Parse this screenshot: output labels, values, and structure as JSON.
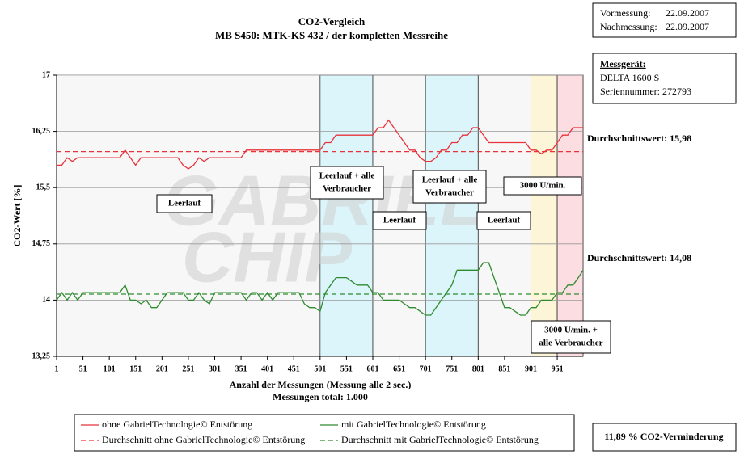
{
  "chart_data": {
    "type": "line",
    "title": [
      "CO2-Vergleich",
      "MB S450: MTK-KS 432 / der kompletten Messreihe"
    ],
    "xlabel": "Anzahl der Messungen (Messung alle 2 sec.)",
    "xsublabel": "Messungen total: 1.000",
    "ylabel": "CO2-Wert [%]",
    "watermark": [
      "GABRIEL",
      "CHIP"
    ],
    "xlim": [
      1,
      1000
    ],
    "xticks": [
      1,
      51,
      101,
      151,
      201,
      251,
      301,
      351,
      401,
      451,
      501,
      551,
      601,
      651,
      701,
      751,
      801,
      851,
      901,
      951
    ],
    "ylim": [
      13.25,
      17
    ],
    "yticks": [
      {
        "value": 13.25,
        "label": "13,25"
      },
      14,
      {
        "value": 14.75,
        "label": "14,75"
      },
      {
        "value": 15.5,
        "label": "15,5"
      },
      {
        "value": 16.25,
        "label": "16,25"
      },
      17
    ],
    "grid": true,
    "x": [
      1,
      11,
      21,
      31,
      41,
      51,
      61,
      71,
      81,
      91,
      101,
      111,
      121,
      131,
      141,
      151,
      161,
      171,
      181,
      191,
      201,
      211,
      221,
      231,
      241,
      251,
      261,
      271,
      281,
      291,
      301,
      311,
      321,
      331,
      341,
      351,
      361,
      371,
      381,
      391,
      401,
      411,
      421,
      431,
      441,
      451,
      461,
      471,
      481,
      491,
      501,
      511,
      521,
      531,
      541,
      551,
      561,
      571,
      581,
      591,
      601,
      611,
      621,
      631,
      641,
      651,
      661,
      671,
      681,
      691,
      701,
      711,
      721,
      731,
      741,
      751,
      761,
      771,
      781,
      791,
      801,
      811,
      821,
      831,
      841,
      851,
      861,
      871,
      881,
      891,
      901,
      911,
      921,
      931,
      941,
      951,
      961,
      971,
      981,
      991,
      1000
    ],
    "series": [
      {
        "name": "ohne GabrielTechnologie© Entstörung",
        "color": "#e8333a",
        "values": [
          15.8,
          15.8,
          15.9,
          15.85,
          15.9,
          15.9,
          15.9,
          15.9,
          15.9,
          15.9,
          15.9,
          15.9,
          15.9,
          16.0,
          15.9,
          15.8,
          15.9,
          15.9,
          15.9,
          15.9,
          15.9,
          15.9,
          15.9,
          15.9,
          15.8,
          15.75,
          15.8,
          15.9,
          15.85,
          15.9,
          15.9,
          15.9,
          15.9,
          15.9,
          15.9,
          15.9,
          16.0,
          16.0,
          16.0,
          16.0,
          16.0,
          16.0,
          16.0,
          16.0,
          16.0,
          16.0,
          16.0,
          16.0,
          16.0,
          16.0,
          16.0,
          16.1,
          16.1,
          16.2,
          16.2,
          16.2,
          16.2,
          16.2,
          16.2,
          16.2,
          16.2,
          16.3,
          16.3,
          16.4,
          16.3,
          16.2,
          16.1,
          16.0,
          16.0,
          15.9,
          15.85,
          15.85,
          15.9,
          16.0,
          16.0,
          16.1,
          16.1,
          16.2,
          16.2,
          16.3,
          16.3,
          16.2,
          16.1,
          16.1,
          16.1,
          16.1,
          16.1,
          16.1,
          16.1,
          16.1,
          16.0,
          16.0,
          15.95,
          16.0,
          16.0,
          16.1,
          16.2,
          16.2,
          16.3,
          16.3,
          16.3
        ]
      },
      {
        "name": "mit GabrielTechnologie© Entstörung",
        "color": "#2e8b2e",
        "values": [
          14.0,
          14.1,
          14.0,
          14.1,
          14.0,
          14.1,
          14.1,
          14.1,
          14.1,
          14.1,
          14.1,
          14.1,
          14.1,
          14.2,
          14.0,
          14.0,
          13.95,
          14.0,
          13.9,
          13.9,
          14.0,
          14.1,
          14.1,
          14.1,
          14.1,
          14.0,
          14.0,
          14.1,
          14.0,
          13.95,
          14.1,
          14.1,
          14.1,
          14.1,
          14.1,
          14.1,
          14.0,
          14.1,
          14.1,
          14.0,
          14.1,
          14.0,
          14.1,
          14.1,
          14.1,
          14.1,
          14.1,
          13.95,
          13.9,
          13.9,
          13.85,
          14.1,
          14.2,
          14.3,
          14.3,
          14.3,
          14.25,
          14.2,
          14.2,
          14.2,
          14.1,
          14.1,
          14.0,
          14.0,
          14.0,
          14.0,
          13.95,
          13.9,
          13.9,
          13.85,
          13.8,
          13.8,
          13.9,
          14.0,
          14.1,
          14.2,
          14.4,
          14.4,
          14.4,
          14.4,
          14.4,
          14.5,
          14.5,
          14.3,
          14.1,
          13.9,
          13.9,
          13.85,
          13.8,
          13.8,
          13.9,
          13.9,
          14.0,
          14.0,
          14.0,
          14.1,
          14.1,
          14.2,
          14.2,
          14.3,
          14.4
        ]
      }
    ],
    "reference_lines": [
      {
        "name": "Durchschnitt ohne GabrielTechnologie© Entstörung",
        "value": 15.98,
        "label": "Durchschnittswert: 15,98",
        "color": "#e8333a"
      },
      {
        "name": "Durchschnitt mit GabrielTechnologie© Entstörung",
        "value": 14.08,
        "label": "Durchschnittswert: 14,08",
        "color": "#2e8b2e"
      }
    ],
    "regions": [
      {
        "x": [
          1,
          501
        ],
        "color": "#f7f7f7",
        "label": [
          "Leerlauf"
        ]
      },
      {
        "x": [
          501,
          601
        ],
        "color": "#dcf5fa",
        "label": [
          "Leerlauf + alle",
          "Verbraucher"
        ]
      },
      {
        "x": [
          601,
          701
        ],
        "color": "#f7f7f7",
        "label": [
          "Leerlauf"
        ]
      },
      {
        "x": [
          701,
          801
        ],
        "color": "#dcf5fa",
        "label": [
          "Leerlauf + alle",
          "Verbraucher"
        ]
      },
      {
        "x": [
          801,
          901
        ],
        "color": "#f7f7f7",
        "label": [
          "Leerlauf"
        ]
      },
      {
        "x": [
          901,
          951
        ],
        "color": "#fdf5d8",
        "label": [
          "3000 U/min."
        ]
      },
      {
        "x": [
          951,
          1000
        ],
        "color": "#fcdde1",
        "label": [
          "3000 U/min. +",
          "alle Verbraucher"
        ]
      }
    ],
    "info": {
      "measurements": [
        {
          "label": "Vormessung:",
          "value": "22.09.2007"
        },
        {
          "label": "Nachmessung:",
          "value": "22.09.2007"
        }
      ],
      "device_heading": "Messgerät:",
      "device_lines": [
        "DELTA 1600 S",
        "Seriennummer: 272793"
      ],
      "reduction": "11,89 % CO2-Verminderung"
    }
  }
}
